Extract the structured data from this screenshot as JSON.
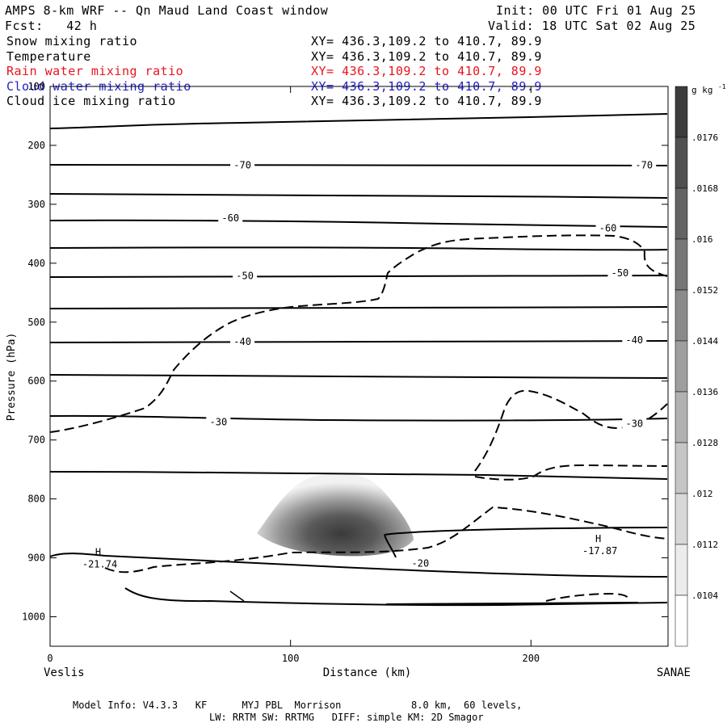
{
  "header": {
    "title": "AMPS 8-km WRF -- Qn Maud Land Coast window",
    "init": "Init: 00 UTC Fri 01 Aug 25",
    "fcst": "Fcst:   42 h",
    "valid": "Valid: 18 UTC Sat 02 Aug 25"
  },
  "fields": [
    {
      "name": "Snow mixing ratio",
      "xy": "XY= 436.3,109.2 to 410.7, 89.9",
      "color": "#000000"
    },
    {
      "name": "Temperature",
      "xy": "XY= 436.3,109.2 to 410.7, 89.9",
      "color": "#000000"
    },
    {
      "name": "Rain water mixing ratio",
      "xy": "XY= 436.3,109.2 to 410.7, 89.9",
      "color": "#e8141e"
    },
    {
      "name": "Cloud water mixing ratio",
      "xy": "XY= 436.3,109.2 to 410.7, 89.9",
      "color": "#2020c8"
    },
    {
      "name": "Cloud ice mixing ratio",
      "xy": "XY= 436.3,109.2 to 410.7, 89.9",
      "color": "#000000"
    }
  ],
  "footer": {
    "line1": "Model Info: V4.3.3   KF      MYJ PBL  Morrison            8.0 km,  60 levels,",
    "line2": "LW: RRTM SW: RRTMG   DIFF: simple KM: 2D Smagor"
  },
  "chart_data": {
    "type": "contour",
    "xlabel": "Distance (km)",
    "ylabel": "Pressure (hPa)",
    "xlim": [
      0,
      257
    ],
    "ylim": [
      1050,
      100
    ],
    "x_ticks": [
      0,
      100,
      200
    ],
    "y_ticks": [
      100,
      200,
      300,
      400,
      500,
      600,
      700,
      800,
      900,
      1000
    ],
    "x_end_labels": {
      "left": "Veslis",
      "right": "SANAE"
    },
    "colorbar": {
      "unit": "g kg",
      "unit_exp": "-1",
      "ticks": [
        ".0176",
        ".0168",
        ".016",
        ".0152",
        ".0144",
        ".0136",
        ".0128",
        ".012",
        ".0112",
        ".0104"
      ]
    },
    "isotherm_labels": [
      {
        "text": "-70",
        "x": 80,
        "p": 232
      },
      {
        "text": "-70",
        "x": 247,
        "p": 232
      },
      {
        "text": "-60",
        "x": 75,
        "p": 322
      },
      {
        "text": "-60",
        "x": 232,
        "p": 339
      },
      {
        "text": "-50",
        "x": 81,
        "p": 420
      },
      {
        "text": "-50",
        "x": 237,
        "p": 415
      },
      {
        "text": "-40",
        "x": 80,
        "p": 532
      },
      {
        "text": "-40",
        "x": 243,
        "p": 529
      },
      {
        "text": "-30",
        "x": 70,
        "p": 668
      },
      {
        "text": "-30",
        "x": 243,
        "p": 671
      },
      {
        "text": "-20",
        "x": 154,
        "p": 908
      }
    ],
    "high_markers": [
      {
        "symbol": "H",
        "value": "-21.74",
        "x": 20,
        "p": 896
      },
      {
        "symbol": "H",
        "value": "-17.87",
        "x": 228,
        "p": 873
      }
    ]
  }
}
